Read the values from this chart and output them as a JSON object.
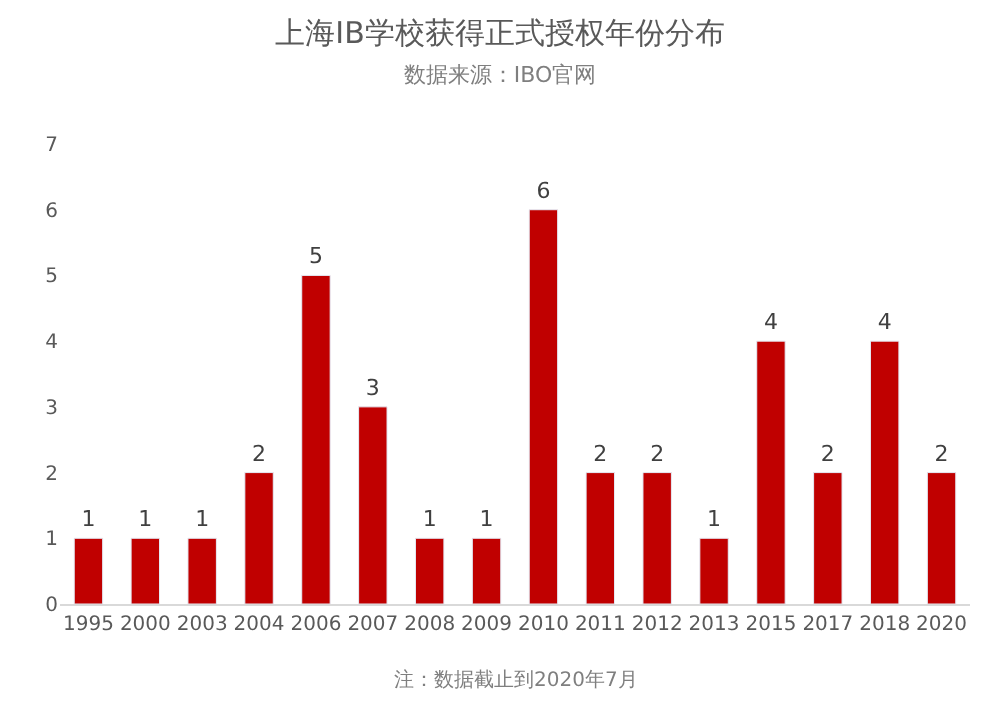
{
  "chart_data": {
    "type": "bar",
    "title": "上海IB学校获得正式授权年份分布",
    "subtitle": "数据来源：IBO官网",
    "categories": [
      "1995",
      "2000",
      "2003",
      "2004",
      "2006",
      "2007",
      "2008",
      "2009",
      "2010",
      "2011",
      "2012",
      "2013",
      "2015",
      "2017",
      "2018",
      "2020"
    ],
    "values": [
      1,
      1,
      1,
      2,
      5,
      3,
      1,
      1,
      6,
      2,
      2,
      1,
      4,
      2,
      4,
      2
    ],
    "color": "#c00000",
    "ylim": [
      0,
      7
    ],
    "yticks": [
      0,
      1,
      2,
      3,
      4,
      5,
      6,
      7
    ],
    "data_labels": true,
    "annotations": [
      "注：数据截止到2020年7月"
    ]
  }
}
